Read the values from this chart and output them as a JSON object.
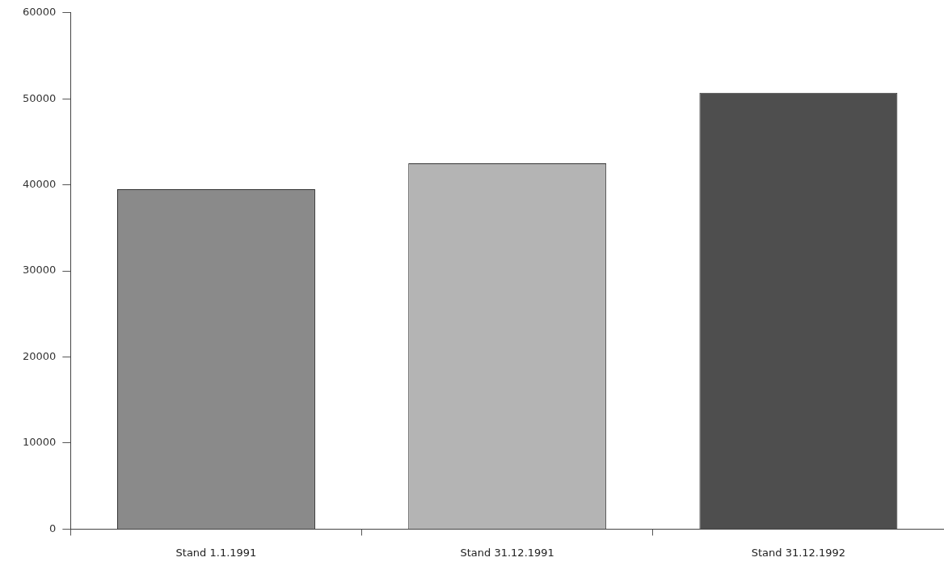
{
  "chart_data": {
    "type": "bar",
    "categories": [
      "Stand 1.1.1991",
      "Stand 31.12.1991",
      "Stand 31.12.1992"
    ],
    "values": [
      39500,
      42500,
      50700
    ],
    "colors": [
      "#8a8a8a",
      "#b4b4b4",
      "#4e4e4e"
    ],
    "ylim": [
      0,
      60000
    ],
    "yticks": [
      0,
      10000,
      20000,
      30000,
      40000,
      50000,
      60000
    ],
    "grid": false,
    "legend": false
  }
}
